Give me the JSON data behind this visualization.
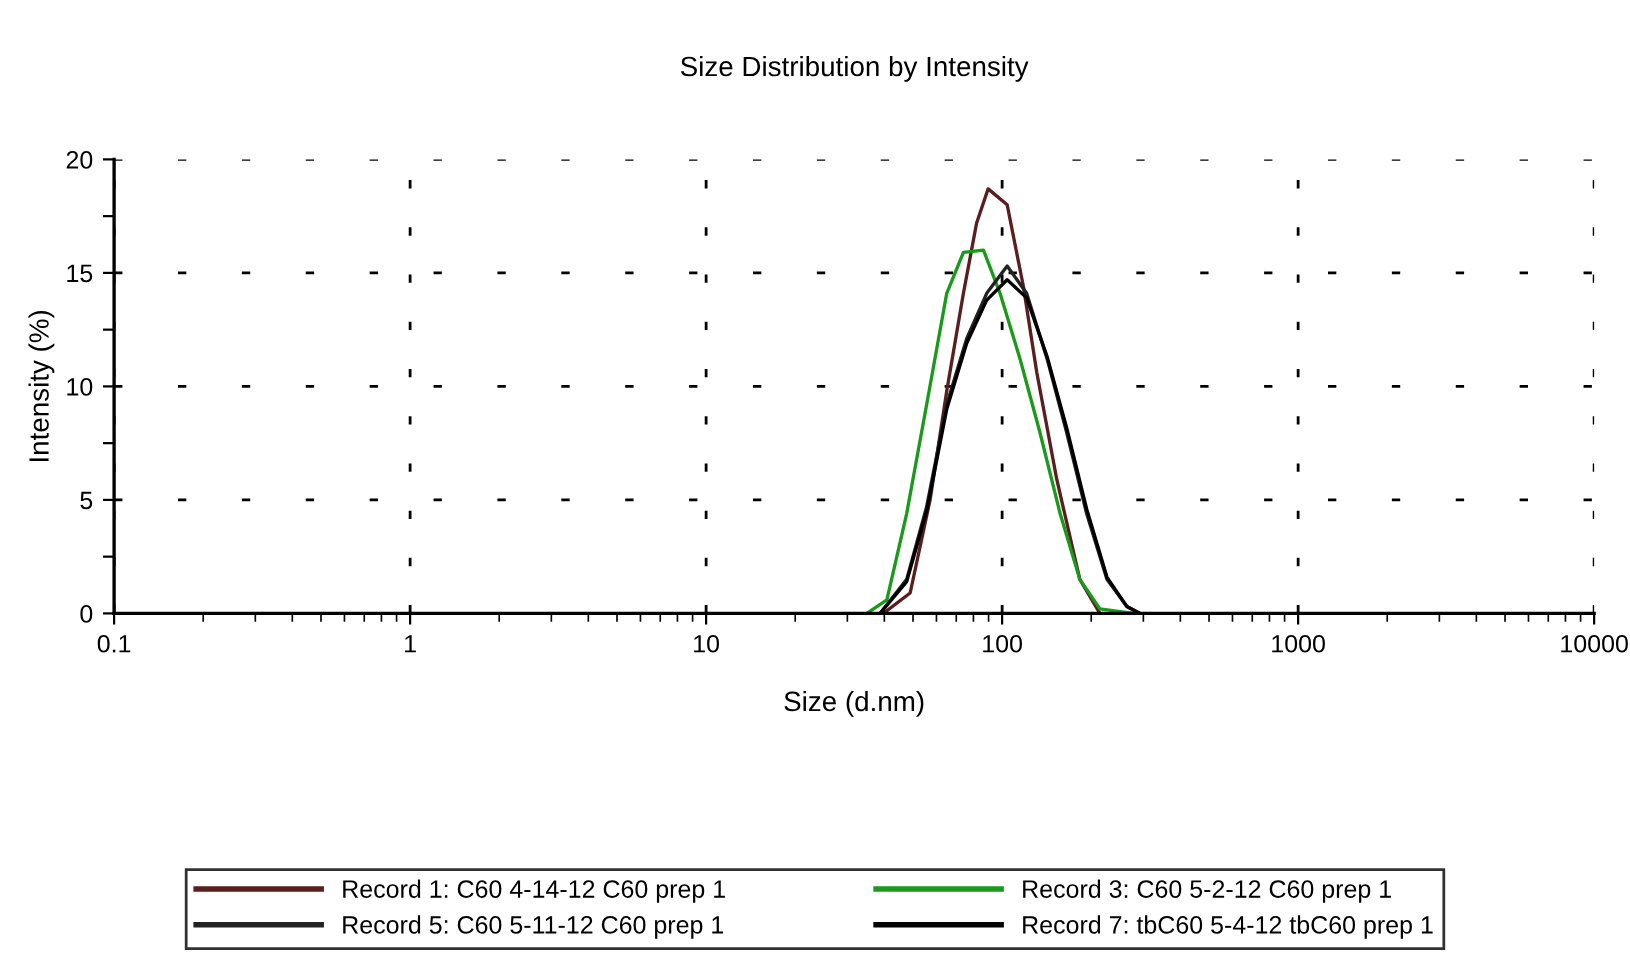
{
  "chart_data": {
    "type": "line",
    "title": "Size Distribution by Intensity",
    "xlabel": "Size (d.nm)",
    "ylabel": "Intensity (%)",
    "log": "x",
    "xlim": [
      0.1,
      10000
    ],
    "xticks": [
      0.1,
      1,
      10,
      100,
      1000,
      10000
    ],
    "ylim": [
      0,
      20
    ],
    "yticks": [
      0,
      {
        "value": 2.5,
        "label": null
      },
      5,
      {
        "value": 7.5,
        "label": null
      },
      10,
      {
        "value": 12.5,
        "label": null
      },
      15,
      {
        "value": 17.5,
        "label": null
      },
      20
    ],
    "grid": true,
    "legend": "bottom",
    "marker": "none",
    "line_style": "solid",
    "series": [
      {
        "name": "Record 1: C60 4-14-12 C60 prep 1",
        "color": "#5a1e1e",
        "x": [
          39.7,
          48.9,
          57.1,
          65.0,
          74.0,
          82,
          89.7,
          104,
          118,
          131,
          153,
          183,
          214
        ],
        "values": [
          0,
          0.9,
          5.0,
          9.8,
          14.1,
          17.2,
          18.7,
          18.0,
          14.4,
          10.6,
          5.9,
          1.5,
          0
        ]
      },
      {
        "name": "Record 3: C60 5-2-12 C60 prep 1",
        "color": "#1a9a1a",
        "x": [
          34.9,
          40.8,
          47.6,
          55.6,
          65.0,
          74.0,
          86.5,
          98.4,
          115,
          134,
          157,
          183,
          214,
          278
        ],
        "values": [
          0,
          0.6,
          4.4,
          9.2,
          14.1,
          15.9,
          16.0,
          14.1,
          11.2,
          8.0,
          4.4,
          1.5,
          0.2,
          0
        ]
      },
      {
        "name": "Record 5: C60 5-11-12 C60 prep 1",
        "color": "#222222",
        "x": [
          38.7,
          47.6,
          55.6,
          65.0,
          75.9,
          88.7,
          104,
          121,
          142,
          165,
          193,
          226,
          264,
          292
        ],
        "values": [
          0,
          1.5,
          4.7,
          9.2,
          12.1,
          14.1,
          15.3,
          14.1,
          11.2,
          8.0,
          4.4,
          1.5,
          0.3,
          0
        ]
      },
      {
        "name": "Record 7: tbC60 5-4-12 tbC60 prep 1",
        "color": "#000000",
        "x": [
          38.7,
          47.6,
          55.6,
          65.0,
          75.9,
          88.7,
          104,
          121,
          142,
          165,
          193,
          226,
          264,
          292
        ],
        "values": [
          0,
          1.4,
          4.5,
          9.0,
          11.9,
          13.8,
          14.7,
          13.9,
          11.3,
          8.2,
          4.6,
          1.6,
          0.3,
          0
        ]
      }
    ]
  }
}
